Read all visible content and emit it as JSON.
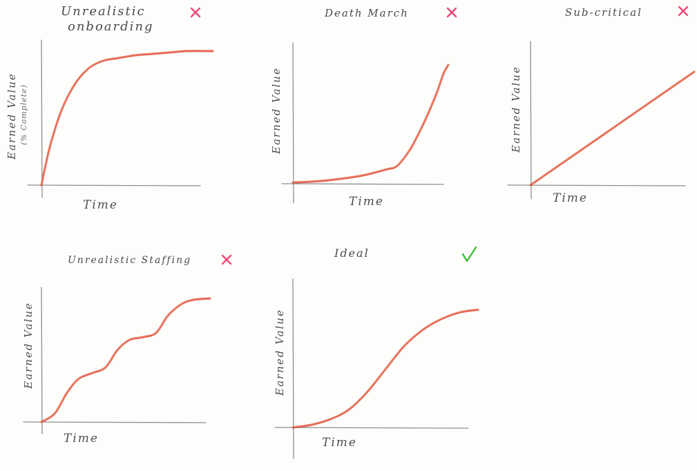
{
  "chart_data": [
    {
      "type": "line",
      "title": "Unrealistic Onboarding",
      "title_lines": [
        "Unrealistic",
        "onboarding"
      ],
      "ylabel": "Earned Value",
      "ylabel_sub": "(% Complete)",
      "xlabel": "Time",
      "verdict": "bad",
      "verdict_symbol": "✕",
      "verdict_color": "#f0467a",
      "curve_color": "#e0553d",
      "series": [
        {
          "x": [
            0,
            0.05,
            0.12,
            0.2,
            0.28,
            0.36,
            0.45,
            0.55,
            0.65,
            0.75,
            0.85,
            1.0
          ],
          "values": [
            0,
            0.28,
            0.55,
            0.74,
            0.85,
            0.9,
            0.92,
            0.94,
            0.95,
            0.96,
            0.97,
            0.97
          ]
        }
      ]
    },
    {
      "type": "line",
      "title": "Death March",
      "title_lines": [
        "Death March"
      ],
      "ylabel": "Earned Value",
      "ylabel_sub": "",
      "xlabel": "Time",
      "verdict": "bad",
      "verdict_symbol": "✕",
      "verdict_color": "#f0467a",
      "curve_color": "#e0553d",
      "series": [
        {
          "x": [
            0,
            0.15,
            0.3,
            0.45,
            0.6,
            0.67,
            0.75,
            0.82,
            0.88,
            0.93,
            0.97,
            1.0
          ],
          "values": [
            0.01,
            0.02,
            0.04,
            0.07,
            0.12,
            0.15,
            0.28,
            0.45,
            0.62,
            0.78,
            0.93,
            1.0
          ]
        }
      ]
    },
    {
      "type": "line",
      "title": "Sub-Critical",
      "title_lines": [
        "Sub-critical"
      ],
      "ylabel": "Earned Value",
      "ylabel_sub": "",
      "xlabel": "Time",
      "verdict": "bad",
      "verdict_symbol": "✕",
      "verdict_color": "#f0467a",
      "curve_color": "#e0553d",
      "series": [
        {
          "x": [
            0,
            1.0
          ],
          "values": [
            0,
            0.72
          ]
        }
      ]
    },
    {
      "type": "line",
      "title": "Unrealistic Staffing",
      "title_lines": [
        "Unrealistic Staffing"
      ],
      "ylabel": "Earned Value",
      "ylabel_sub": "",
      "xlabel": "Time",
      "verdict": "bad",
      "verdict_symbol": "✕",
      "verdict_color": "#f0467a",
      "curve_color": "#e0553d",
      "series": [
        {
          "x": [
            0,
            0.08,
            0.15,
            0.22,
            0.3,
            0.38,
            0.45,
            0.52,
            0.6,
            0.68,
            0.75,
            0.83,
            0.9,
            1.0
          ],
          "values": [
            0,
            0.06,
            0.2,
            0.3,
            0.34,
            0.38,
            0.5,
            0.57,
            0.59,
            0.62,
            0.74,
            0.82,
            0.85,
            0.86
          ]
        }
      ]
    },
    {
      "type": "line",
      "title": "Ideal",
      "title_lines": [
        "Ideal"
      ],
      "ylabel": "Earned Value",
      "ylabel_sub": "",
      "xlabel": "Time",
      "verdict": "good",
      "verdict_symbol": "✓",
      "verdict_color": "#3dbb3d",
      "curve_color": "#e0553d",
      "series": [
        {
          "x": [
            0,
            0.1,
            0.2,
            0.3,
            0.4,
            0.5,
            0.6,
            0.7,
            0.8,
            0.9,
            1.0
          ],
          "values": [
            0,
            0.02,
            0.06,
            0.13,
            0.26,
            0.43,
            0.6,
            0.72,
            0.8,
            0.85,
            0.87
          ]
        }
      ]
    }
  ]
}
